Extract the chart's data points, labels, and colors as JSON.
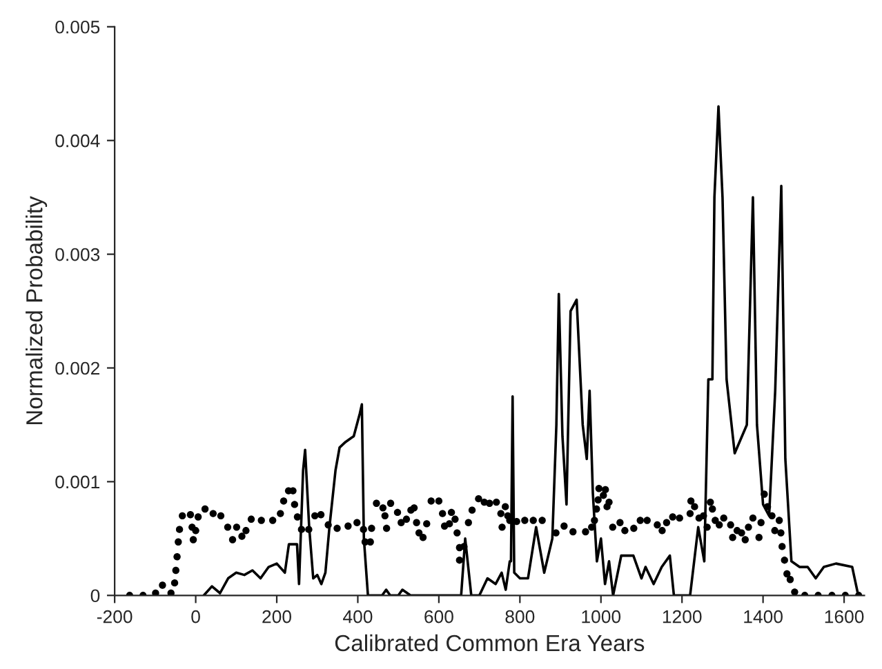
{
  "chart_data": {
    "type": "line",
    "xlabel": "Calibrated Common Era Years",
    "ylabel": "Normalized Probability",
    "xlim": [
      -200,
      1650
    ],
    "xticks": [
      -200,
      0,
      200,
      400,
      600,
      800,
      1000,
      1200,
      1400,
      1600
    ],
    "ylim": [
      0,
      0.005
    ],
    "yticks": [
      0,
      0.001,
      0.002,
      0.003,
      0.004,
      0.005
    ],
    "grid": false,
    "legend": false,
    "series": [
      {
        "color": "#000000",
        "marker": "none",
        "line_style": "solid",
        "x": [
          20,
          40,
          60,
          80,
          100,
          120,
          140,
          160,
          180,
          200,
          220,
          230,
          250,
          255,
          265,
          270,
          280,
          290,
          300,
          310,
          320,
          330,
          345,
          355,
          370,
          390,
          405,
          410,
          415,
          425,
          460,
          470,
          480,
          500,
          510,
          530,
          655,
          665,
          680,
          700,
          720,
          740,
          755,
          765,
          775,
          778,
          782,
          786,
          800,
          820,
          840,
          860,
          880,
          890,
          896,
          905,
          915,
          925,
          940,
          955,
          965,
          972,
          980,
          990,
          1000,
          1010,
          1020,
          1030,
          1050,
          1080,
          1100,
          1110,
          1130,
          1150,
          1170,
          1180,
          1220,
          1240,
          1255,
          1265,
          1275,
          1280,
          1290,
          1300,
          1310,
          1330,
          1360,
          1375,
          1385,
          1400,
          1415,
          1430,
          1445,
          1455,
          1470,
          1490,
          1510,
          1530,
          1550,
          1580,
          1620,
          1635
        ],
        "values": [
          0,
          8e-05,
          2e-05,
          0.00015,
          0.0002,
          0.00018,
          0.00022,
          0.00015,
          0.00025,
          0.00028,
          0.0002,
          0.00045,
          0.00045,
          0.0001,
          0.0011,
          0.00128,
          0.0006,
          0.00015,
          0.00018,
          0.0001,
          0.0002,
          0.0006,
          0.0011,
          0.0013,
          0.00135,
          0.0014,
          0.0016,
          0.00168,
          0.0005,
          0,
          0,
          5e-05,
          0,
          0,
          5e-05,
          0,
          0,
          0.0005,
          0,
          0,
          0.00015,
          0.0001,
          0.0002,
          5e-05,
          0.0003,
          0.0003,
          0.00175,
          0.0002,
          0.00015,
          0.00015,
          0.0006,
          0.0002,
          0.0005,
          0.0015,
          0.00265,
          0.0014,
          0.0008,
          0.0025,
          0.0026,
          0.0015,
          0.0012,
          0.0018,
          0.0009,
          0.0003,
          0.0005,
          0.0001,
          0.0003,
          0,
          0.00035,
          0.00035,
          0.00015,
          0.00025,
          0.0001,
          0.00025,
          0.00035,
          0,
          0,
          0.0006,
          0.0003,
          0.0019,
          0.0019,
          0.0035,
          0.0043,
          0.0035,
          0.0019,
          0.00125,
          0.0015,
          0.0035,
          0.0015,
          0.0008,
          0.0007,
          0.0018,
          0.0036,
          0.0012,
          0.0003,
          0.00025,
          0.00025,
          0.00015,
          0.00025,
          0.00028,
          0.00025,
          0
        ]
      },
      {
        "type": "scatter",
        "color": "#000000",
        "marker": "circle",
        "x": [
          -163,
          -130,
          -99,
          -82,
          -61,
          -52,
          -49,
          -46,
          -43,
          -40,
          -33,
          -13,
          -9,
          -6,
          0,
          6,
          23,
          43,
          62,
          79,
          91,
          101,
          114,
          124,
          137,
          162,
          190,
          209,
          217,
          229,
          240,
          244,
          251,
          261,
          279,
          294,
          309,
          327,
          349,
          376,
          398,
          414,
          418,
          431,
          434,
          446,
          462,
          467,
          471,
          481,
          498,
          507,
          520,
          531,
          539,
          545,
          551,
          561,
          570,
          581,
          600,
          609,
          614,
          626,
          631,
          640,
          645,
          651,
          651,
          662,
          673,
          682,
          698,
          712,
          725,
          742,
          753,
          756,
          764,
          770,
          775,
          792,
          812,
          833,
          855,
          889,
          909,
          931,
          962,
          977,
          984,
          989,
          993,
          995,
          1006,
          1011,
          1015,
          1020,
          1029,
          1047,
          1059,
          1081,
          1097,
          1114,
          1139,
          1151,
          1162,
          1177,
          1194,
          1220,
          1222,
          1231,
          1242,
          1253,
          1262,
          1270,
          1275,
          1282,
          1292,
          1303,
          1320,
          1325,
          1336,
          1347,
          1356,
          1364,
          1375,
          1390,
          1395,
          1403,
          1411,
          1422,
          1429,
          1440,
          1444,
          1447,
          1453,
          1459,
          1467,
          1478,
          1503,
          1536,
          1570,
          1603,
          1636
        ],
        "values": [
          0,
          0,
          2e-05,
          9e-05,
          2e-05,
          0.00011,
          0.00022,
          0.00034,
          0.00047,
          0.00058,
          0.0007,
          0.00071,
          0.0006,
          0.00049,
          0.00057,
          0.00069,
          0.00076,
          0.00072,
          0.0007,
          0.0006,
          0.00049,
          0.0006,
          0.00052,
          0.00057,
          0.00067,
          0.00066,
          0.00066,
          0.00072,
          0.00083,
          0.00092,
          0.00092,
          0.0008,
          0.00069,
          0.00058,
          0.00058,
          0.0007,
          0.00071,
          0.00062,
          0.00059,
          0.00061,
          0.00064,
          0.00058,
          0.00047,
          0.00047,
          0.00059,
          0.00081,
          0.00077,
          0.0007,
          0.00059,
          0.00081,
          0.00073,
          0.00064,
          0.00067,
          0.00075,
          0.00077,
          0.00064,
          0.00055,
          0.00051,
          0.00063,
          0.00083,
          0.00083,
          0.00072,
          0.00061,
          0.00063,
          0.00073,
          0.00067,
          0.00055,
          0.00042,
          0.00031,
          0.00043,
          0.00064,
          0.00075,
          0.00085,
          0.00082,
          0.00081,
          0.00082,
          0.00072,
          0.0006,
          0.00078,
          0.0007,
          0.00066,
          0.00065,
          0.00066,
          0.00066,
          0.00066,
          0.00055,
          0.00061,
          0.00056,
          0.00056,
          0.0006,
          0.00066,
          0.00076,
          0.00084,
          0.00094,
          0.00088,
          0.00093,
          0.00078,
          0.00082,
          0.0006,
          0.00064,
          0.00057,
          0.00059,
          0.00066,
          0.00066,
          0.00062,
          0.00057,
          0.00064,
          0.00069,
          0.00068,
          0.00072,
          0.00083,
          0.00078,
          0.00068,
          0.0007,
          0.0006,
          0.00082,
          0.00076,
          0.00066,
          0.00062,
          0.00068,
          0.00062,
          0.00051,
          0.00057,
          0.00055,
          0.00049,
          0.0006,
          0.00068,
          0.00051,
          0.00064,
          0.00089,
          0.00078,
          0.0007,
          0.00057,
          0.00066,
          0.00055,
          0.00043,
          0.00031,
          0.00019,
          0.00014,
          3e-05,
          0,
          0,
          0,
          0,
          0
        ]
      }
    ]
  }
}
